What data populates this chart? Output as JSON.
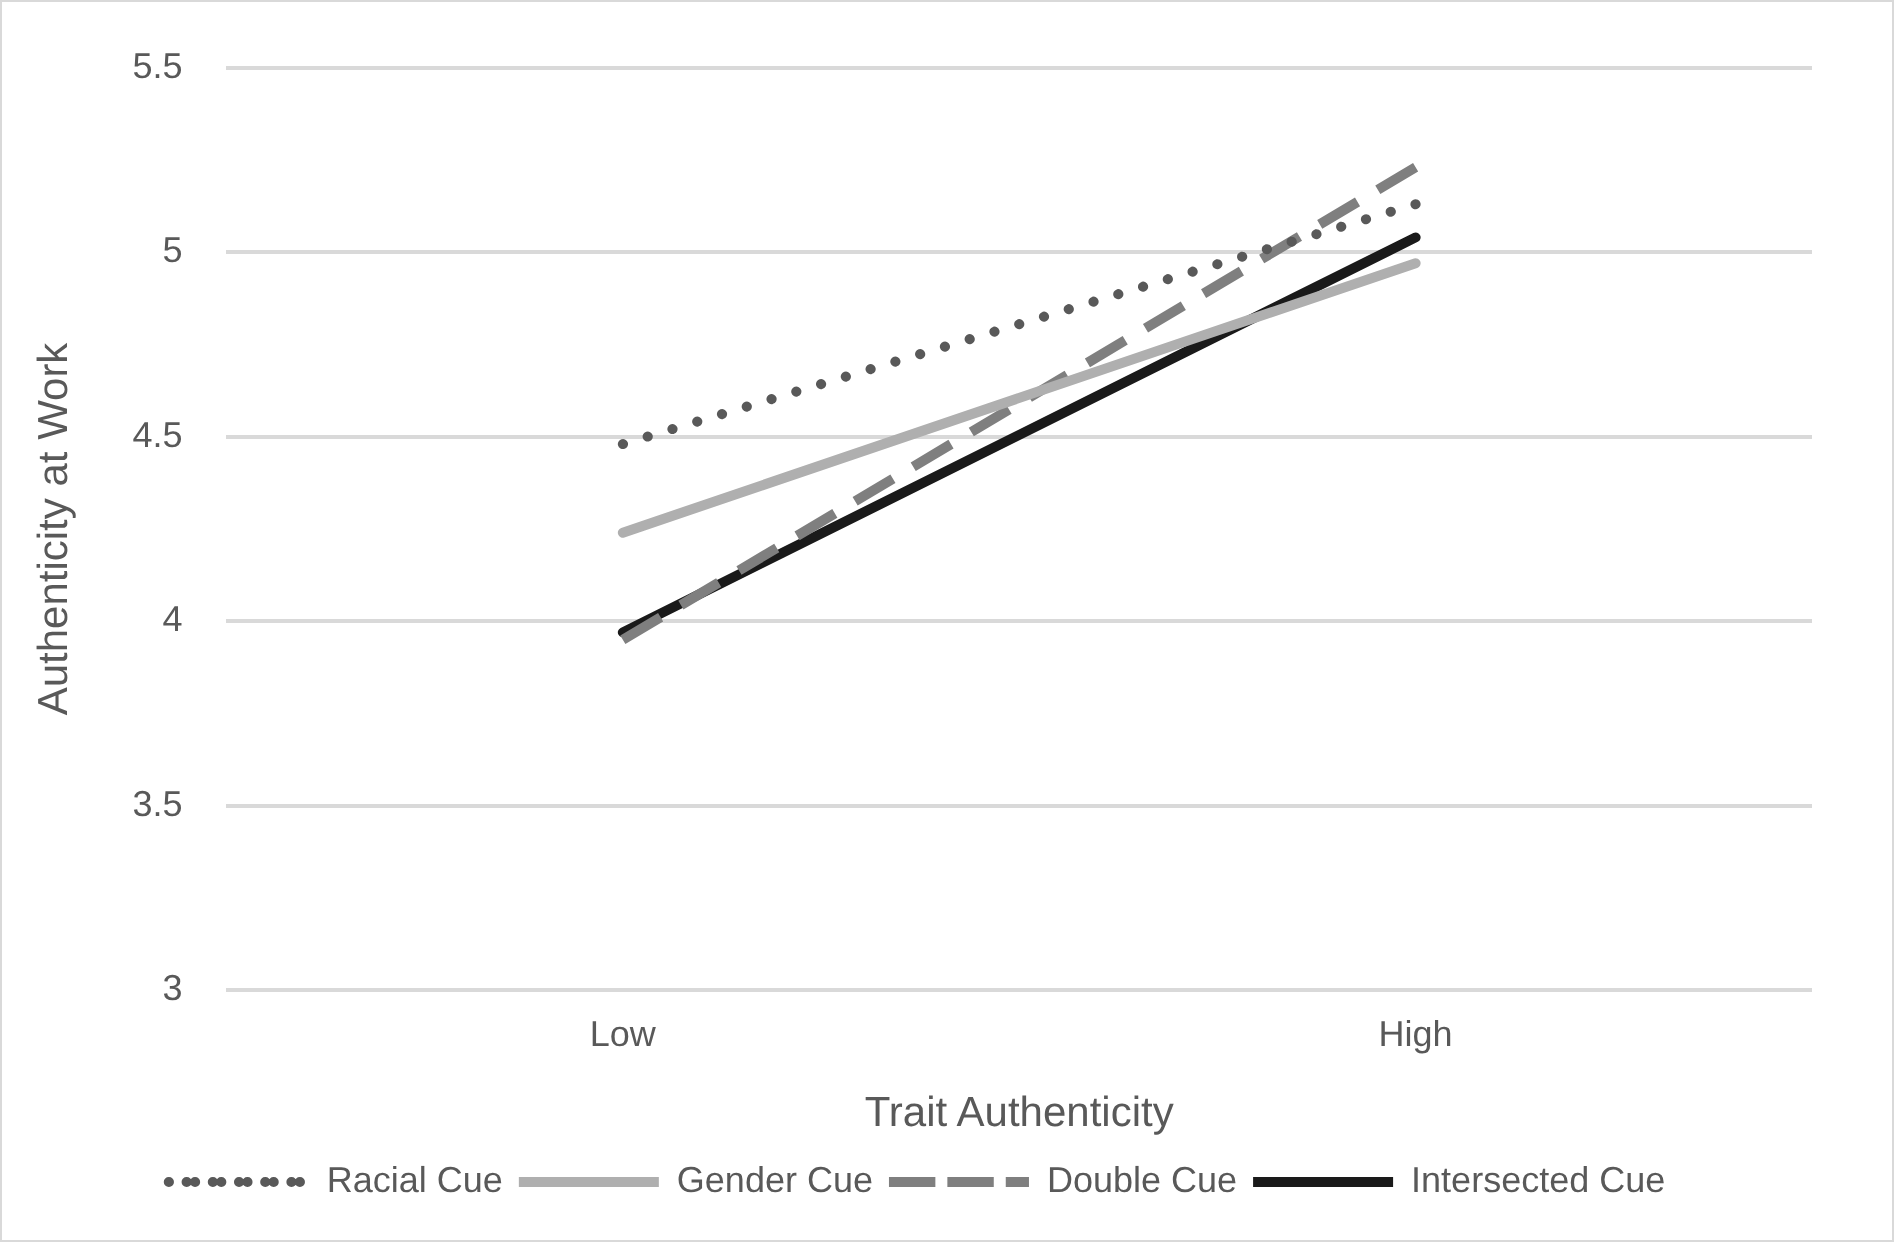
{
  "chart_data": {
    "type": "line",
    "xlabel": "Trait Authenticity",
    "ylabel": "Authenticity at Work",
    "categories": [
      "Low",
      "High"
    ],
    "series": [
      {
        "name": "Racial Cue",
        "color": "#595959",
        "values": [
          4.48,
          5.13
        ],
        "line_style": "dotted"
      },
      {
        "name": "Gender Cue",
        "color": "#afafaf",
        "values": [
          4.24,
          4.97
        ],
        "line_style": "solid"
      },
      {
        "name": "Double Cue",
        "color": "#7f7f7f",
        "values": [
          3.95,
          5.23
        ],
        "line_style": "dashed"
      },
      {
        "name": "Intersected Cue",
        "color": "#1a1a1a",
        "values": [
          3.97,
          5.04
        ],
        "line_style": "solid"
      }
    ],
    "ylim": [
      3,
      5.5
    ],
    "yticks": [
      3,
      3.5,
      4,
      4.5,
      5,
      5.5
    ],
    "grid": "y",
    "legend": "bottom",
    "marker": "none"
  }
}
